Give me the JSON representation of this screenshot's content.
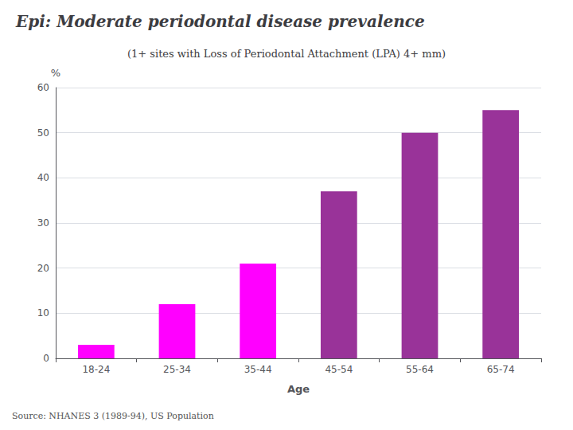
{
  "chart_data": {
    "type": "bar",
    "title": "Epi: Moderate periodontal disease prevalence",
    "subtitle": "(1+ sites with Loss of Periodontal Attachment (LPA) 4+ mm)",
    "annotations": [
      "Source: NHANES 3 (1989-94), US Population"
    ],
    "xlabel": "Age",
    "ylabel": "%",
    "categories": [
      "18-24",
      "25-34",
      "35-44",
      "45-54",
      "55-64",
      "65-74"
    ],
    "values": [
      3,
      12,
      21,
      37,
      50,
      55
    ],
    "colors": [
      "#FF00FF",
      "#FF00FF",
      "#FF00FF",
      "#993399",
      "#993399",
      "#993399"
    ],
    "ylim": [
      0,
      60
    ],
    "yticks": [
      0,
      10,
      20,
      30,
      40,
      50,
      60
    ],
    "grid": true
  }
}
